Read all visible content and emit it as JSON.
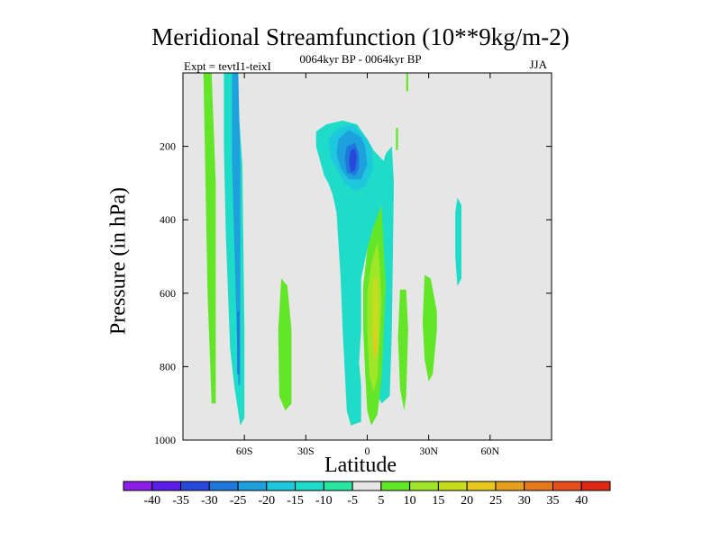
{
  "chart_data": {
    "type": "contour",
    "title": "Meridional Streamfunction (10**9kg/m-2)",
    "subtitle": "0064kyr BP - 0064kyr BP",
    "left_label": "Expt = tevtI1-teixI",
    "right_label": "JJA",
    "xlabel": "Latitude",
    "ylabel": "Pressure (in hPa)",
    "xlim": [
      -90,
      90
    ],
    "ylim": [
      1000,
      0
    ],
    "x_ticks": [
      {
        "value": -60,
        "label": "60S"
      },
      {
        "value": -30,
        "label": "30S"
      },
      {
        "value": 0,
        "label": "0"
      },
      {
        "value": 30,
        "label": "30N"
      },
      {
        "value": 60,
        "label": "60N"
      }
    ],
    "y_ticks": [
      {
        "value": 200,
        "label": "200"
      },
      {
        "value": 400,
        "label": "400"
      },
      {
        "value": 600,
        "label": "600"
      },
      {
        "value": 800,
        "label": "800"
      },
      {
        "value": 1000,
        "label": "1000"
      }
    ],
    "background_color": "#e6e6e6",
    "levels": [
      -40,
      -35,
      -30,
      -25,
      -20,
      -15,
      -10,
      -5,
      5,
      10,
      15,
      20,
      25,
      30,
      35,
      40
    ],
    "level_labels": [
      "-40",
      "-35",
      "-30",
      "-25",
      "-20",
      "-15",
      "-10",
      "-5",
      "5",
      "10",
      "15",
      "20",
      "25",
      "30",
      "35",
      "40"
    ],
    "colors": [
      "#8a1ee6",
      "#5a1ee6",
      "#2848dc",
      "#1e78dc",
      "#1ea0dc",
      "#1ec8dc",
      "#1edcc8",
      "#28e6a0",
      "#e6e6e6",
      "#64e628",
      "#a0e628",
      "#c8dc1e",
      "#e6c81e",
      "#e6a01e",
      "#e6781e",
      "#e6501e",
      "#dc2814"
    ],
    "regions": [
      {
        "value": 10,
        "points": [
          [
            -80,
            0
          ],
          [
            -76,
            0
          ],
          [
            -74,
            300
          ],
          [
            -74,
            900
          ],
          [
            -76,
            900
          ],
          [
            -78,
            600
          ],
          [
            -79,
            300
          ]
        ]
      },
      {
        "value": -10,
        "points": [
          [
            -70,
            0
          ],
          [
            -64,
            0
          ],
          [
            -61,
            250
          ],
          [
            -60,
            700
          ],
          [
            -60,
            940
          ],
          [
            -62,
            960
          ],
          [
            -65,
            850
          ],
          [
            -67,
            750
          ],
          [
            -68,
            600
          ],
          [
            -69,
            450
          ],
          [
            -70,
            200
          ]
        ]
      },
      {
        "value": -20,
        "points": [
          [
            -66,
            0
          ],
          [
            -63,
            0
          ],
          [
            -62,
            250
          ],
          [
            -62,
            650
          ],
          [
            -62,
            850
          ],
          [
            -63,
            850
          ],
          [
            -64,
            650
          ],
          [
            -65,
            450
          ],
          [
            -66,
            250
          ]
        ]
      },
      {
        "value": -25,
        "points": [
          [
            -63.5,
            650
          ],
          [
            -62.5,
            650
          ],
          [
            -62.5,
            820
          ],
          [
            -63.5,
            820
          ]
        ]
      },
      {
        "value": 10,
        "points": [
          [
            -42,
            560
          ],
          [
            -39,
            580
          ],
          [
            -37,
            700
          ],
          [
            -37,
            900
          ],
          [
            -40,
            920
          ],
          [
            -43,
            880
          ],
          [
            -43.5,
            700
          ]
        ]
      },
      {
        "value": -10,
        "points": [
          [
            -25,
            160
          ],
          [
            -20,
            140
          ],
          [
            -12,
            130
          ],
          [
            -5,
            140
          ],
          [
            0,
            180
          ],
          [
            3,
            210
          ],
          [
            8,
            240
          ],
          [
            9,
            220
          ],
          [
            12,
            200
          ],
          [
            13,
            300
          ],
          [
            12,
            700
          ],
          [
            11,
            880
          ],
          [
            7,
            900
          ],
          [
            5,
            880
          ],
          [
            4,
            700
          ],
          [
            4,
            620
          ],
          [
            0,
            480
          ],
          [
            -3,
            560
          ],
          [
            -3,
            700
          ],
          [
            -4,
            790
          ],
          [
            -3,
            850
          ],
          [
            -3,
            950
          ],
          [
            -8,
            960
          ],
          [
            -10,
            920
          ],
          [
            -12,
            700
          ],
          [
            -13,
            560
          ],
          [
            -14,
            470
          ],
          [
            -15,
            380
          ],
          [
            -17,
            330
          ],
          [
            -19,
            300
          ],
          [
            -21,
            280
          ],
          [
            -23,
            240
          ],
          [
            -25,
            200
          ]
        ]
      },
      {
        "value": -15,
        "points": [
          [
            -19,
            180
          ],
          [
            -14,
            150
          ],
          [
            -7,
            140
          ],
          [
            -2,
            170
          ],
          [
            2,
            200
          ],
          [
            3,
            260
          ],
          [
            -1,
            310
          ],
          [
            -6,
            320
          ],
          [
            -11,
            300
          ],
          [
            -15,
            260
          ],
          [
            -18,
            230
          ]
        ]
      },
      {
        "value": -20,
        "points": [
          [
            -14,
            180
          ],
          [
            -9,
            155
          ],
          [
            -3,
            175
          ],
          [
            -1,
            200
          ],
          [
            0,
            250
          ],
          [
            -3,
            290
          ],
          [
            -9,
            290
          ],
          [
            -13,
            260
          ],
          [
            -15,
            220
          ]
        ]
      },
      {
        "value": -25,
        "points": [
          [
            -10,
            200
          ],
          [
            -6,
            190
          ],
          [
            -4,
            220
          ],
          [
            -4,
            260
          ],
          [
            -6,
            280
          ],
          [
            -10,
            270
          ],
          [
            -11,
            230
          ]
        ]
      },
      {
        "value": -30,
        "points": [
          [
            -8,
            210
          ],
          [
            -6,
            205
          ],
          [
            -5,
            230
          ],
          [
            -6,
            265
          ],
          [
            -8,
            270
          ],
          [
            -9,
            240
          ]
        ]
      },
      {
        "value": 10,
        "points": [
          [
            0,
            480
          ],
          [
            3,
            420
          ],
          [
            7,
            360
          ],
          [
            8,
            480
          ],
          [
            9,
            580
          ],
          [
            8,
            700
          ],
          [
            7,
            830
          ],
          [
            5,
            930
          ],
          [
            2,
            960
          ],
          [
            0,
            920
          ],
          [
            -1,
            820
          ],
          [
            -2,
            700
          ],
          [
            -2,
            580
          ]
        ]
      },
      {
        "value": 15,
        "points": [
          [
            2,
            520
          ],
          [
            5,
            460
          ],
          [
            6,
            520
          ],
          [
            7,
            620
          ],
          [
            6,
            720
          ],
          [
            5,
            830
          ],
          [
            3,
            870
          ],
          [
            1,
            820
          ],
          [
            0,
            700
          ],
          [
            0,
            600
          ]
        ]
      },
      {
        "value": 20,
        "points": [
          [
            3,
            560
          ],
          [
            5,
            560
          ],
          [
            5.5,
            660
          ],
          [
            5,
            760
          ],
          [
            3.5,
            780
          ],
          [
            2.5,
            680
          ]
        ]
      },
      {
        "value": 25,
        "points": [
          [
            3,
            700
          ],
          [
            4.5,
            700
          ],
          [
            4.6,
            760
          ],
          [
            3.7,
            780
          ],
          [
            3,
            740
          ]
        ]
      },
      {
        "value": 10,
        "points": [
          [
            16,
            590
          ],
          [
            19,
            590
          ],
          [
            20,
            700
          ],
          [
            19,
            880
          ],
          [
            18,
            920
          ],
          [
            16,
            860
          ],
          [
            15,
            720
          ]
        ]
      },
      {
        "value": 10,
        "points": [
          [
            28,
            550
          ],
          [
            31,
            560
          ],
          [
            34,
            650
          ],
          [
            34,
            700
          ],
          [
            32,
            820
          ],
          [
            30,
            840
          ],
          [
            28,
            780
          ],
          [
            27,
            680
          ]
        ]
      },
      {
        "value": -10,
        "points": [
          [
            44,
            340
          ],
          [
            46,
            360
          ],
          [
            46,
            560
          ],
          [
            44,
            580
          ],
          [
            43,
            500
          ],
          [
            43,
            380
          ]
        ]
      },
      {
        "value": 10,
        "points": [
          [
            19,
            0
          ],
          [
            20,
            0
          ],
          [
            20,
            50
          ],
          [
            19,
            50
          ]
        ]
      },
      {
        "value": 10,
        "points": [
          [
            14,
            150
          ],
          [
            15,
            150
          ],
          [
            15,
            210
          ],
          [
            14,
            210
          ]
        ]
      }
    ]
  }
}
